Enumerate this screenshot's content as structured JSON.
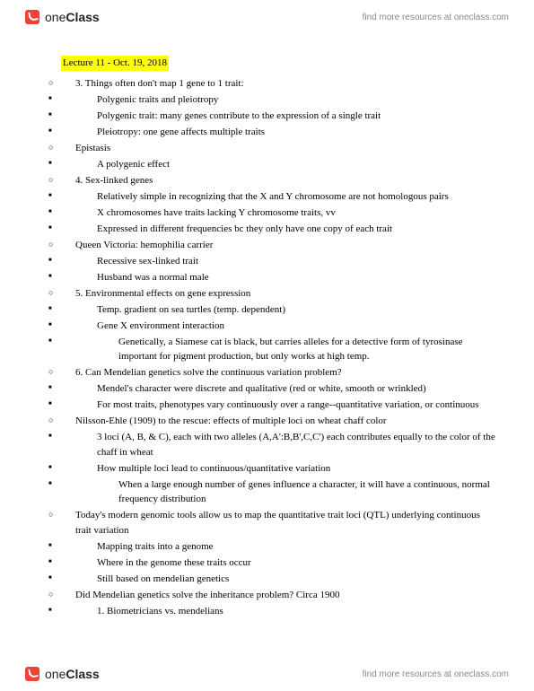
{
  "brand": {
    "name1": "one",
    "name2": "Class",
    "tagline": "find more resources at oneclass.com"
  },
  "title": "Lecture 11 - Oct. 19, 2018",
  "items": [
    {
      "lvl": 1,
      "t": "3. Things often don't map 1 gene to 1 trait:"
    },
    {
      "lvl": 2,
      "t": "Polygenic traits and pleiotropy"
    },
    {
      "lvl": 2,
      "t": "Polygenic trait: many genes contribute to the expression of a single trait"
    },
    {
      "lvl": 2,
      "t": "Pleiotropy: one gene affects multiple traits"
    },
    {
      "lvl": 1,
      "t": "Epistasis"
    },
    {
      "lvl": 2,
      "t": "A polygenic effect"
    },
    {
      "lvl": 1,
      "t": "4. Sex-linked genes"
    },
    {
      "lvl": 2,
      "t": "Relatively simple in recognizing that the X and Y chromosome are not homologous pairs"
    },
    {
      "lvl": 2,
      "t": "X chromosomes have traits lacking Y chromosome traits, vv"
    },
    {
      "lvl": 2,
      "t": "Expressed in different frequencies bc they only have one copy of each trait"
    },
    {
      "lvl": 1,
      "t": "Queen Victoria: hemophilia carrier"
    },
    {
      "lvl": 2,
      "t": "Recessive sex-linked trait"
    },
    {
      "lvl": 2,
      "t": "Husband was a normal male"
    },
    {
      "lvl": 1,
      "t": "5. Environmental effects on gene expression"
    },
    {
      "lvl": 2,
      "t": "Temp. gradient on sea turtles (temp. dependent)"
    },
    {
      "lvl": 2,
      "t": "Gene X environment interaction"
    },
    {
      "lvl": 3,
      "t": "Genetically,  a Siamese cat is black, but carries alleles for a detective form of tyrosinase important for pigment production, but only works at high temp."
    },
    {
      "lvl": 1,
      "t": "6. Can Mendelian genetics solve the continuous variation problem?"
    },
    {
      "lvl": 2,
      "t": "Mendel's character were discrete and qualitative (red or white, smooth or wrinkled)"
    },
    {
      "lvl": 2,
      "t": "For most traits, phenotypes vary continuously over a range--quantitative variation, or continuous"
    },
    {
      "lvl": 1,
      "t": "Nilsson-Ehle (1909) to the rescue: effects of  multiple loci on wheat chaff color"
    },
    {
      "lvl": 2,
      "t": "3 loci (A, B, & C), each with two alleles (A,A':B,B',C,C') each contributes equally to the color of the chaff in wheat"
    },
    {
      "lvl": 2,
      "t": "How multiple loci lead to continuous/quantitative variation"
    },
    {
      "lvl": 3,
      "t": "When a large enough number of genes influence a character, it will have a continuous, normal frequency distribution"
    },
    {
      "lvl": 1,
      "t": "Today's modern genomic tools allow us to map the quantitative trait loci (QTL) underlying continuous trait variation"
    },
    {
      "lvl": 2,
      "t": "Mapping traits into a genome"
    },
    {
      "lvl": 2,
      "t": "Where in the genome these traits occur"
    },
    {
      "lvl": 2,
      "t": "Still based on mendelian genetics"
    },
    {
      "lvl": 1,
      "t": "Did Mendelian genetics solve the inheritance problem? Circa 1900"
    },
    {
      "lvl": 2,
      "t": "1. Biometricians vs. mendelians"
    }
  ]
}
